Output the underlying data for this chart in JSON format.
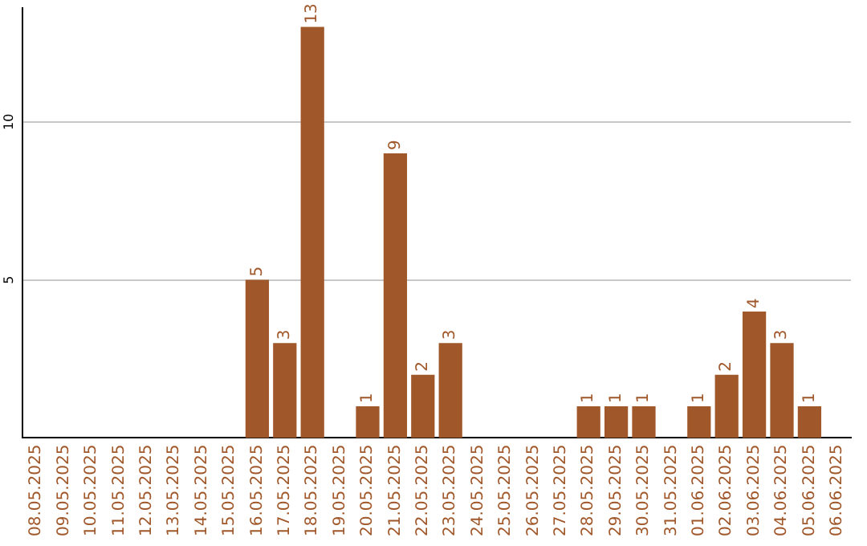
{
  "chart_data": {
    "type": "bar",
    "categories": [
      "08.05.2025",
      "09.05.2025",
      "10.05.2025",
      "11.05.2025",
      "12.05.2025",
      "13.05.2025",
      "14.05.2025",
      "15.05.2025",
      "16.05.2025",
      "17.05.2025",
      "18.05.2025",
      "19.05.2025",
      "20.05.2025",
      "21.05.2025",
      "22.05.2025",
      "23.05.2025",
      "24.05.2025",
      "25.05.2025",
      "26.05.2025",
      "27.05.2025",
      "28.05.2025",
      "29.05.2025",
      "30.05.2025",
      "31.05.2025",
      "01.06.2025",
      "02.06.2025",
      "03.06.2025",
      "04.06.2025",
      "05.06.2025",
      "06.06.2025"
    ],
    "values": [
      null,
      null,
      null,
      null,
      null,
      null,
      null,
      null,
      5,
      3,
      13,
      null,
      1,
      9,
      2,
      3,
      null,
      null,
      null,
      null,
      1,
      1,
      1,
      null,
      1,
      2,
      4,
      3,
      1,
      null
    ],
    "color": "#a0582b",
    "ylim": [
      0,
      13.6
    ],
    "yticks": [
      5,
      10
    ],
    "grid": "y",
    "data_labels": true,
    "legend": false
  }
}
